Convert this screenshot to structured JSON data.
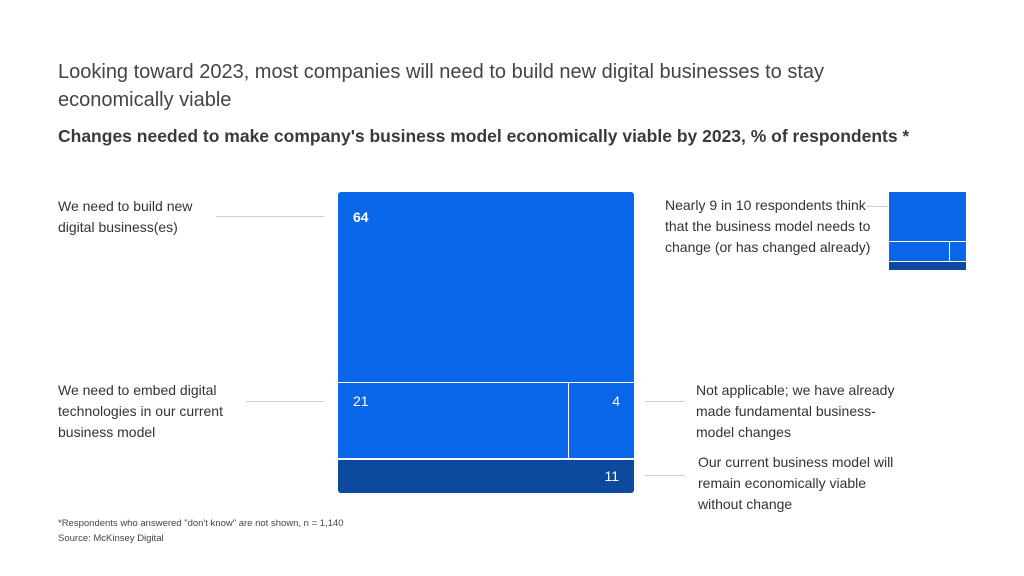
{
  "title": "Looking toward 2023, most companies will need to build new digital businesses to stay economically viable",
  "subtitle": "Changes needed to make company's business model economically viable by 2023, % of respondents *",
  "callout": "Nearly 9 in 10 respondents think that the business model needs to change (or has changed already)",
  "footnote": "*Respondents who answered \"don't know\" are not shown, n = 1,140",
  "source": "Source: McKinsey Digital",
  "colors": {
    "bright_blue": "#0a66e8",
    "dark_blue": "#0b4a9c",
    "divider": "#ffffff"
  },
  "chart_data": {
    "type": "treemap",
    "categories": [
      "We need to build new digital business(es)",
      "We need to embed digital technologies in our current business model",
      "Not applicable; we have already made fundamental business-model changes",
      "Our current business model will remain economically viable without change"
    ],
    "values": [
      64,
      21,
      4,
      11
    ],
    "value_labels": [
      "64",
      "21",
      "4",
      "11"
    ]
  }
}
